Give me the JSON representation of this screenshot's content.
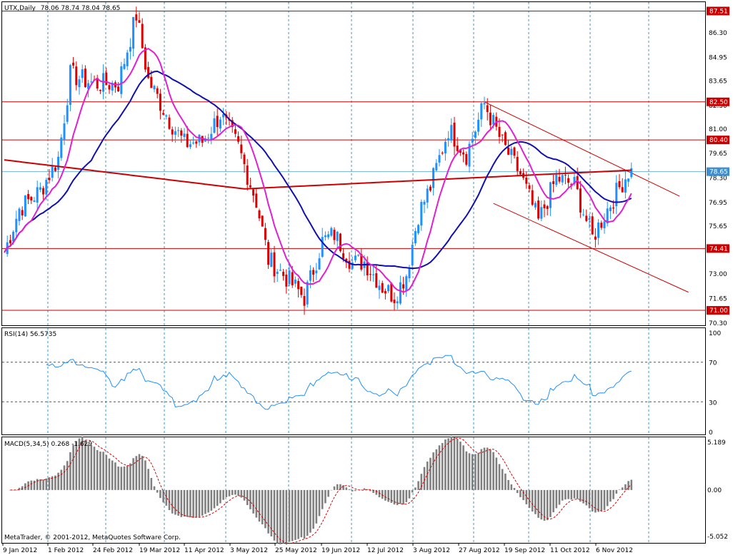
{
  "chart_data": [
    {
      "type": "candlestick",
      "panel": "price",
      "title": "UTX,Daily",
      "ohlc_text": "78.06 78.74 78.04 78.65",
      "ylim": [
        70.3,
        88.0
      ],
      "y_ticks": [
        "86.30",
        "84.95",
        "83.65",
        "82.30",
        "81.00",
        "79.65",
        "78.30",
        "76.95",
        "75.65",
        "74.30",
        "73.00",
        "71.65",
        "70.30"
      ],
      "x_ticks": [
        "9 Jan 2012",
        "1 Feb 2012",
        "24 Feb 2012",
        "19 Mar 2012",
        "11 Apr 2012",
        "3 May 2012",
        "25 May 2012",
        "19 Jun 2012",
        "12 Jul 2012",
        "3 Aug 2012",
        "27 Aug 2012",
        "19 Sep 2012",
        "11 Oct 2012",
        "6 Nov 2012"
      ],
      "levels": [
        {
          "value": 87.51,
          "label": "87.51"
        },
        {
          "value": 82.5,
          "label": "82.50"
        },
        {
          "value": 80.4,
          "label": "80.40"
        },
        {
          "value": 74.41,
          "label": "74.41"
        },
        {
          "value": 71.0,
          "label": "71.00"
        }
      ],
      "current_price": {
        "value": 78.65,
        "label": "78.65"
      },
      "channel": {
        "upper": [
          [
            160,
            82.5
          ],
          [
            225,
            77.3
          ]
        ],
        "lower": [
          [
            163,
            76.9
          ],
          [
            228,
            72.0
          ]
        ]
      },
      "bars_count": 210,
      "colors": {
        "up": "#1e90ff",
        "down": "#dd0000",
        "ma_fast": "#e020d0",
        "ma_mid": "#1010b0",
        "ma_slow": "#cc0000",
        "level": "#cc0000",
        "grid": "#3399cc"
      }
    },
    {
      "type": "line",
      "panel": "rsi",
      "title": "RSI(14) 56.5735",
      "ylim": [
        0,
        100
      ],
      "y_ticks": [
        "100",
        "70",
        "30",
        "0"
      ],
      "levels": [
        70,
        30
      ]
    },
    {
      "type": "bar",
      "panel": "macd",
      "title": "MACD(5,34,5) 0.268 -1.629",
      "ylim": [
        -5.052,
        5.189
      ],
      "y_ticks": [
        "5.189",
        "0.00",
        "-5.052"
      ]
    }
  ],
  "footer": {
    "copyright": "MetaTrader, © 2001-2012, MetaQuotes Software Corp."
  }
}
